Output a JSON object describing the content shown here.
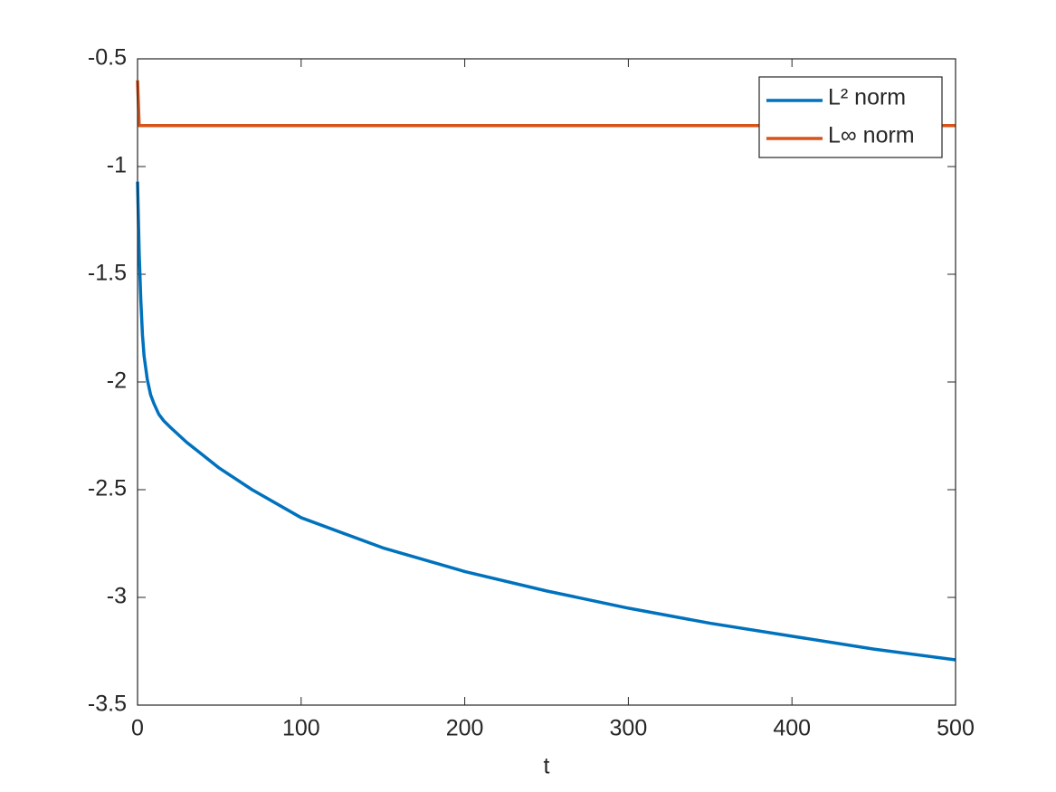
{
  "chart_data": {
    "type": "line",
    "xlabel": "t",
    "xlim": [
      0,
      500
    ],
    "xticks": [
      0,
      100,
      200,
      300,
      400,
      500
    ],
    "ylim": [
      -3.5,
      -0.5
    ],
    "yticks": [
      -3.5,
      -3,
      -2.5,
      -2,
      -1.5,
      -1,
      -0.5
    ],
    "legend": "upper right",
    "grid": false,
    "series": [
      {
        "name": "L² norm",
        "color": "#0072BD",
        "x": [
          0,
          1,
          2,
          3,
          4,
          6,
          8,
          10,
          13,
          16,
          20,
          30,
          40,
          50,
          70,
          100,
          150,
          200,
          250,
          300,
          350,
          400,
          450,
          500
        ],
        "values": [
          -1.07,
          -1.4,
          -1.62,
          -1.78,
          -1.88,
          -1.99,
          -2.06,
          -2.1,
          -2.15,
          -2.18,
          -2.21,
          -2.28,
          -2.34,
          -2.4,
          -2.5,
          -2.63,
          -2.77,
          -2.88,
          -2.97,
          -3.05,
          -3.12,
          -3.18,
          -3.24,
          -3.29
        ]
      },
      {
        "name": "L∞ norm",
        "color": "#D95319",
        "x": [
          0,
          1,
          500
        ],
        "values": [
          -0.6,
          -0.81,
          -0.81
        ]
      }
    ]
  }
}
